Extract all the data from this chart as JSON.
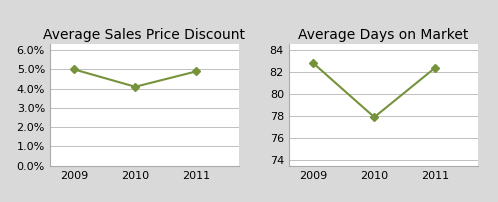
{
  "chart1_title": "Average Sales Price Discount",
  "chart2_title": "Average Days on Market",
  "years": [
    2009,
    2010,
    2011
  ],
  "discount_values": [
    0.05,
    0.041,
    0.049
  ],
  "days_values": [
    82.8,
    77.9,
    82.4
  ],
  "line_color": "#76933C",
  "marker_style": "D",
  "marker_size": 4,
  "bg_color": "#D9D9D9",
  "chart_bg": "#FFFFFF",
  "title_fontsize": 10,
  "tick_fontsize": 8,
  "ylim1": [
    0.0,
    0.063
  ],
  "yticks1": [
    0.0,
    0.01,
    0.02,
    0.03,
    0.04,
    0.05,
    0.06
  ],
  "ylim2": [
    73.5,
    84.5
  ],
  "yticks2": [
    74,
    76,
    78,
    80,
    82,
    84
  ],
  "grid_color": "#C0C0C0",
  "spine_color": "#AAAAAA"
}
